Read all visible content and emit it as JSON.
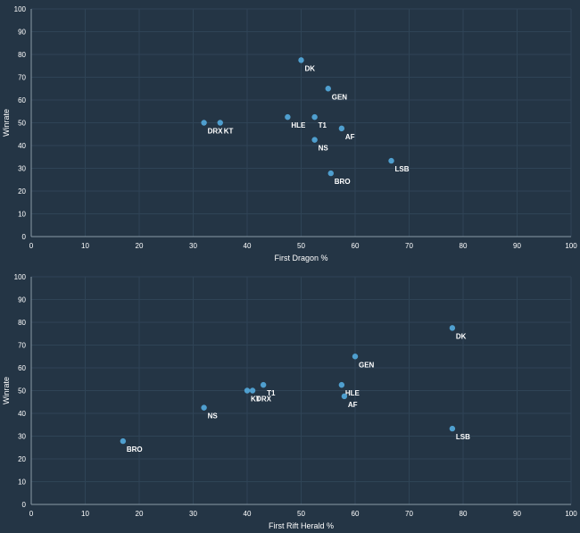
{
  "theme": {
    "background": "#243545",
    "grid": "#2f4456",
    "axis": "#8a9aa8",
    "tick_text": "#ffffff",
    "point": "#4f9fcf",
    "label": "#ffffff"
  },
  "chart_data": [
    {
      "type": "scatter",
      "xlabel": "First Dragon %",
      "ylabel": "Winrate",
      "xlim": [
        0,
        100
      ],
      "ylim": [
        0,
        100
      ],
      "xticks": [
        0,
        10,
        20,
        30,
        40,
        50,
        60,
        70,
        80,
        90,
        100
      ],
      "yticks": [
        0,
        10,
        20,
        30,
        40,
        50,
        60,
        70,
        80,
        90,
        100
      ],
      "grid": true,
      "points": [
        {
          "label": "DK",
          "x": 50,
          "y": 77.5
        },
        {
          "label": "GEN",
          "x": 55,
          "y": 65
        },
        {
          "label": "DRX",
          "x": 32,
          "y": 50
        },
        {
          "label": "KT",
          "x": 35,
          "y": 50
        },
        {
          "label": "HLE",
          "x": 47.5,
          "y": 52.5
        },
        {
          "label": "T1",
          "x": 52.5,
          "y": 52.5
        },
        {
          "label": "AF",
          "x": 57.5,
          "y": 47.5
        },
        {
          "label": "NS",
          "x": 52.5,
          "y": 42.5
        },
        {
          "label": "LSB",
          "x": 66.7,
          "y": 33.3
        },
        {
          "label": "BRO",
          "x": 55.5,
          "y": 27.8
        }
      ]
    },
    {
      "type": "scatter",
      "xlabel": "First Rift Herald %",
      "ylabel": "Winrate",
      "xlim": [
        0,
        100
      ],
      "ylim": [
        0,
        100
      ],
      "xticks": [
        0,
        10,
        20,
        30,
        40,
        50,
        60,
        70,
        80,
        90,
        100
      ],
      "yticks": [
        0,
        10,
        20,
        30,
        40,
        50,
        60,
        70,
        80,
        90,
        100
      ],
      "grid": true,
      "points": [
        {
          "label": "DK",
          "x": 78,
          "y": 77.5
        },
        {
          "label": "GEN",
          "x": 60,
          "y": 65
        },
        {
          "label": "KT",
          "x": 40,
          "y": 50
        },
        {
          "label": "DRX",
          "x": 41,
          "y": 50
        },
        {
          "label": "T1",
          "x": 43,
          "y": 52.5
        },
        {
          "label": "HLE",
          "x": 57.5,
          "y": 52.5
        },
        {
          "label": "AF",
          "x": 58,
          "y": 47.5
        },
        {
          "label": "NS",
          "x": 32,
          "y": 42.5
        },
        {
          "label": "LSB",
          "x": 78,
          "y": 33.3
        },
        {
          "label": "BRO",
          "x": 17,
          "y": 27.8
        }
      ]
    }
  ]
}
